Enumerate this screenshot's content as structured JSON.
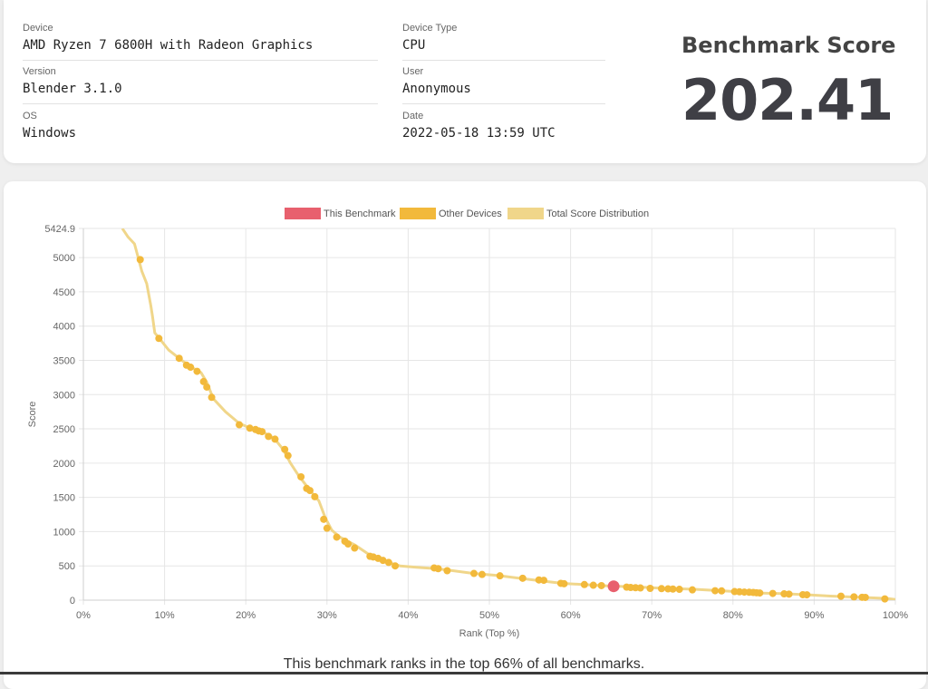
{
  "info": {
    "device_label": "Device",
    "device_value": "AMD Ryzen 7 6800H with Radeon Graphics",
    "version_label": "Version",
    "version_value": "Blender 3.1.0",
    "os_label": "OS",
    "os_value": "Windows",
    "device_type_label": "Device Type",
    "device_type_value": "CPU",
    "user_label": "User",
    "user_value": "Anonymous",
    "date_label": "Date",
    "date_value": "2022-05-18 13:59 UTC"
  },
  "score": {
    "title": "Benchmark Score",
    "value": "202.41"
  },
  "rank_text": "This benchmark ranks in the top 66% of all benchmarks.",
  "chart_data": {
    "type": "scatter",
    "xlabel": "Rank (Top %)",
    "ylabel": "Score",
    "xlim": [
      0,
      100
    ],
    "ylim": [
      0,
      5424.9
    ],
    "x_ticks": [
      "0%",
      "10%",
      "20%",
      "30%",
      "40%",
      "50%",
      "60%",
      "70%",
      "80%",
      "90%",
      "100%"
    ],
    "y_ticks": [
      "0",
      "500",
      "1000",
      "1500",
      "2000",
      "2500",
      "3000",
      "3500",
      "4000",
      "4500",
      "5000",
      "5424.9"
    ],
    "grid": true,
    "legend_position": "top",
    "legend": [
      {
        "name": "This Benchmark",
        "color": "#e8606e"
      },
      {
        "name": "Other Devices",
        "color": "#f2b93b"
      },
      {
        "name": "Total Score Distribution",
        "color": "#f0d68a"
      }
    ],
    "distribution": {
      "name": "Total Score Distribution",
      "x": [
        4.8,
        5.5,
        6.3,
        6.8,
        7.2,
        7.8,
        8.3,
        8.5,
        8.8,
        9.5,
        10.5,
        11.8,
        13.0,
        14.5,
        15.2,
        16.0,
        17.5,
        19.2,
        20.8,
        22.0,
        23.5,
        24.6,
        25.5,
        26.5,
        27.6,
        28.2,
        29.0,
        29.8,
        30.6,
        31.6,
        33.5,
        35.5,
        37.0,
        39.0,
        41.0,
        43.5,
        45.5,
        48.0,
        51.0,
        55.0,
        59.0,
        62.0,
        65.0,
        68.0,
        71.0,
        75.0,
        78.0,
        81.0,
        83.0,
        86.0,
        89.0,
        92.0,
        95.0,
        97.0,
        99.0,
        100.0
      ],
      "y": [
        5424.9,
        5300,
        5200,
        4980,
        4800,
        4620,
        4300,
        4150,
        3900,
        3800,
        3650,
        3530,
        3420,
        3320,
        3180,
        2940,
        2750,
        2580,
        2500,
        2460,
        2360,
        2200,
        2000,
        1820,
        1650,
        1560,
        1450,
        1200,
        1020,
        920,
        800,
        640,
        570,
        500,
        480,
        460,
        430,
        390,
        360,
        300,
        245,
        225,
        205,
        195,
        175,
        160,
        140,
        120,
        105,
        95,
        80,
        60,
        45,
        35,
        25,
        10
      ]
    },
    "series": [
      {
        "name": "Other Devices",
        "x": [
          7.0,
          9.3,
          11.8,
          12.7,
          13.2,
          14.0,
          14.8,
          15.2,
          15.8,
          19.2,
          20.5,
          21.2,
          21.6,
          22.0,
          22.8,
          23.6,
          24.8,
          25.2,
          26.8,
          27.5,
          27.9,
          28.5,
          29.6,
          30.0,
          31.2,
          32.2,
          32.6,
          33.4,
          35.3,
          35.7,
          36.3,
          36.9,
          37.6,
          38.4,
          43.2,
          43.7,
          44.8,
          48.1,
          49.1,
          51.3,
          54.1,
          56.1,
          56.7,
          58.8,
          59.2,
          61.7,
          62.8,
          63.8,
          66.9,
          67.4,
          68.0,
          68.6,
          69.8,
          71.2,
          72.0,
          72.6,
          73.4,
          75.0,
          77.8,
          78.6,
          80.2,
          80.8,
          81.4,
          82.0,
          82.5,
          82.9,
          83.3,
          84.9,
          86.3,
          86.9,
          88.6,
          89.1,
          93.3,
          94.9,
          95.9,
          96.3,
          98.7
        ],
        "y": [
          4970,
          3820,
          3530,
          3430,
          3400,
          3340,
          3190,
          3110,
          2960,
          2560,
          2510,
          2490,
          2470,
          2460,
          2390,
          2350,
          2200,
          2110,
          1800,
          1630,
          1600,
          1510,
          1180,
          1050,
          920,
          860,
          820,
          760,
          640,
          630,
          610,
          580,
          550,
          500,
          470,
          460,
          430,
          390,
          375,
          355,
          320,
          295,
          290,
          245,
          240,
          228,
          218,
          212,
          190,
          185,
          182,
          178,
          172,
          168,
          165,
          162,
          158,
          150,
          138,
          135,
          125,
          122,
          118,
          115,
          112,
          108,
          105,
          98,
          92,
          88,
          80,
          78,
          58,
          48,
          42,
          40,
          18
        ]
      },
      {
        "name": "This Benchmark",
        "x": [
          65.3
        ],
        "y": [
          202.41
        ]
      }
    ]
  }
}
